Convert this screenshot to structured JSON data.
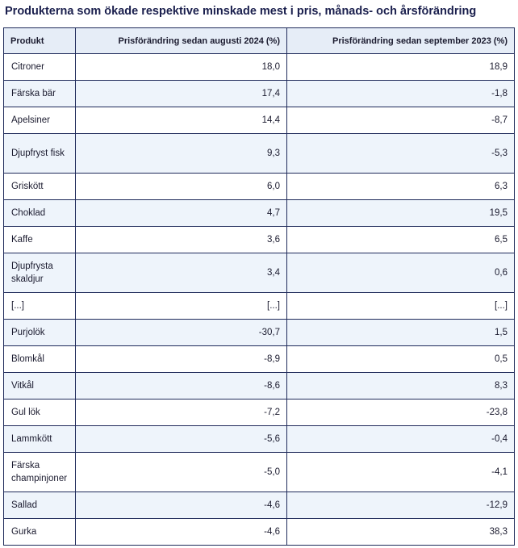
{
  "title": "Produkterna som ökade respektive minskade mest i pris, månads- och årsförändring",
  "table": {
    "headers": [
      "Produkt",
      "Prisförändring sedan augusti 2024 (%)",
      "Prisförändring sedan september 2023 (%)"
    ],
    "rows": [
      {
        "product": "Citroner",
        "aug2024": "18,0",
        "sep2023": "18,9"
      },
      {
        "product": "Färska bär",
        "aug2024": "17,4",
        "sep2023": "-1,8"
      },
      {
        "product": "Apelsiner",
        "aug2024": "14,4",
        "sep2023": "-8,7"
      },
      {
        "product": "Djupfryst fisk",
        "aug2024": "9,3",
        "sep2023": "-5,3"
      },
      {
        "product": "Griskött",
        "aug2024": "6,0",
        "sep2023": "6,3"
      },
      {
        "product": "Choklad",
        "aug2024": "4,7",
        "sep2023": "19,5"
      },
      {
        "product": "Kaffe",
        "aug2024": "3,6",
        "sep2023": "6,5"
      },
      {
        "product": "Djupfrysta skaldjur",
        "aug2024": "3,4",
        "sep2023": "0,6"
      },
      {
        "product": "[...]",
        "aug2024": "[...]",
        "sep2023": "[...]"
      },
      {
        "product": "Purjolök",
        "aug2024": "-30,7",
        "sep2023": "1,5"
      },
      {
        "product": "Blomkål",
        "aug2024": "-8,9",
        "sep2023": "0,5"
      },
      {
        "product": "Vitkål",
        "aug2024": "-8,6",
        "sep2023": "8,3"
      },
      {
        "product": "Gul lök",
        "aug2024": "-7,2",
        "sep2023": "-23,8"
      },
      {
        "product": "Lammkött",
        "aug2024": "-5,6",
        "sep2023": "-0,4"
      },
      {
        "product": "Färska champinjoner",
        "aug2024": "-5,0",
        "sep2023": "-4,1"
      },
      {
        "product": "Sallad",
        "aug2024": "-4,6",
        "sep2023": "-12,9"
      },
      {
        "product": "Gurka",
        "aug2024": "-4,6",
        "sep2023": "38,3"
      }
    ]
  }
}
